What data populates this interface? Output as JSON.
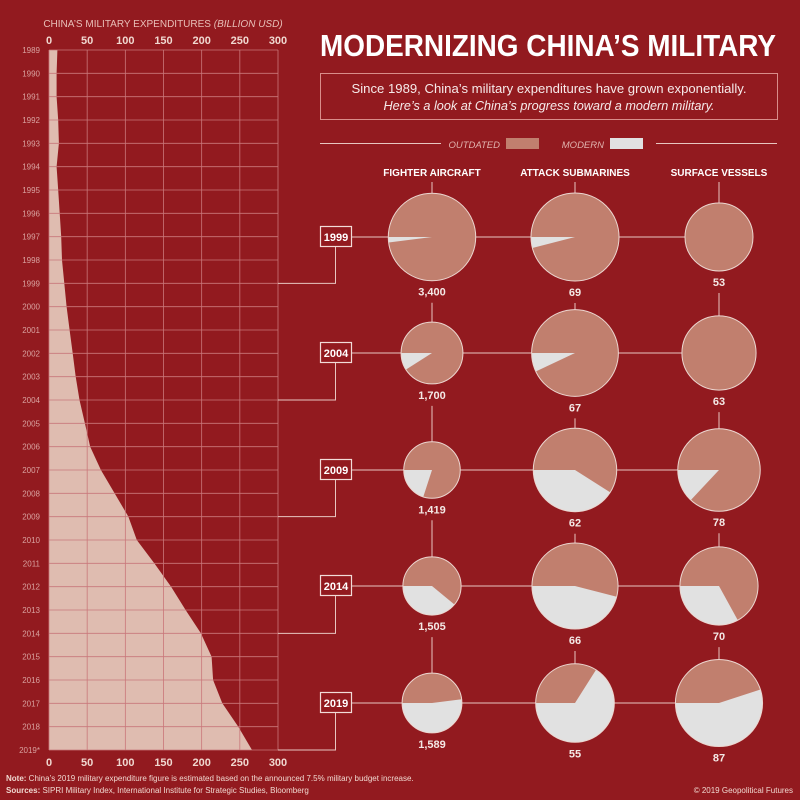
{
  "title": "MODERNIZING CHINA’S MILITARY",
  "subtitle_line1": "Since 1989, China’s military expenditures have grown exponentially.",
  "subtitle_line2": "Here’s a look at China’s progress toward a modern military.",
  "legend": {
    "outdated": "OUTDATED",
    "modern": "MODERN"
  },
  "colors": {
    "background": "#921a1f",
    "outdated": "#c17f6e",
    "modern": "#e1e1e1",
    "area": "#dfbcb0"
  },
  "chart_data": [
    {
      "type": "area",
      "title": "CHINA’S MILITARY EXPENDITURES",
      "title_unit": "(BILLION USD)",
      "orientation": "horizontal-values-vertical-years",
      "xlim": [
        0,
        300
      ],
      "x_ticks": [
        "0",
        "50",
        "100",
        "150",
        "200",
        "250",
        "300"
      ],
      "grid": true,
      "years": [
        "1989",
        "1990",
        "1991",
        "1992",
        "1993",
        "1994",
        "1995",
        "1996",
        "1997",
        "1998",
        "1999",
        "2000",
        "2001",
        "2002",
        "2003",
        "2004",
        "2005",
        "2006",
        "2007",
        "2008",
        "2009",
        "2010",
        "2011",
        "2012",
        "2013",
        "2014",
        "2015",
        "2016",
        "2017",
        "2018",
        "2019*"
      ],
      "values": [
        11,
        10,
        10,
        12,
        13,
        10,
        12,
        14,
        16,
        17,
        20,
        23,
        27,
        31,
        35,
        40,
        47,
        54,
        68,
        86,
        104,
        115,
        138,
        160,
        179,
        199,
        213,
        215,
        227,
        248,
        266
      ]
    },
    {
      "type": "pie",
      "columns": [
        "FIGHTER AIRCRAFT",
        "ATTACK SUBMARINES",
        "SURFACE VESSELS"
      ],
      "rows": [
        {
          "year": "1999",
          "cells": [
            {
              "total": "3,400",
              "modern_share": 0.02
            },
            {
              "total": "69",
              "modern_share": 0.04
            },
            {
              "total": "53",
              "modern_share": 0
            }
          ]
        },
        {
          "year": "2004",
          "cells": [
            {
              "total": "1,700",
              "modern_share": 0.09
            },
            {
              "total": "67",
              "modern_share": 0.07
            },
            {
              "total": "63",
              "modern_share": 0
            }
          ]
        },
        {
          "year": "2009",
          "cells": [
            {
              "total": "1,419",
              "modern_share": 0.2
            },
            {
              "total": "62",
              "modern_share": 0.41
            },
            {
              "total": "78",
              "modern_share": 0.13
            }
          ]
        },
        {
          "year": "2014",
          "cells": [
            {
              "total": "1,505",
              "modern_share": 0.39
            },
            {
              "total": "66",
              "modern_share": 0.46
            },
            {
              "total": "70",
              "modern_share": 0.33
            }
          ]
        },
        {
          "year": "2019",
          "cells": [
            {
              "total": "1,589",
              "modern_share": 0.52
            },
            {
              "total": "55",
              "modern_share": 0.66
            },
            {
              "total": "87",
              "modern_share": 0.55
            }
          ]
        }
      ]
    }
  ],
  "footer": {
    "note_label": "Note:",
    "note_text": " China’s 2019 military expenditure figure is estimated based on the announced 7.5% military budget increase.",
    "sources_label": "Sources:",
    "sources_text": " SIPRI Military Index, International Institute for Strategic Studies, Bloomberg",
    "copyright": "© 2019 Geopolitical Futures"
  }
}
